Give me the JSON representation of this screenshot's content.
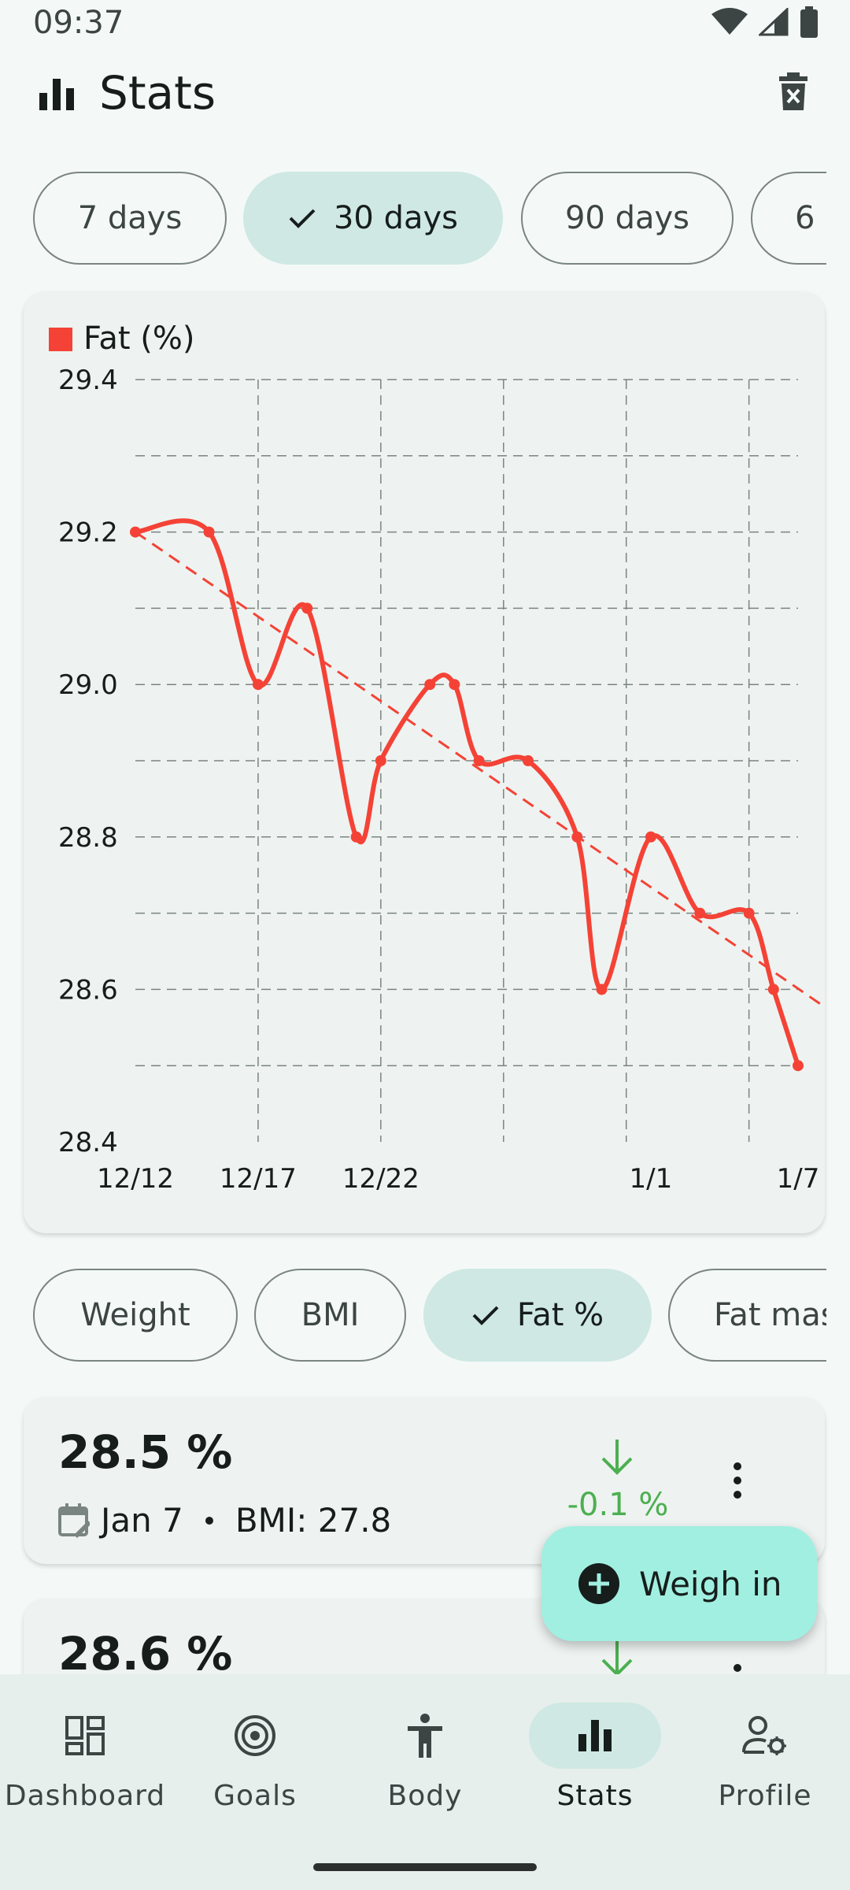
{
  "status": {
    "time": "09:37"
  },
  "header": {
    "title": "Stats"
  },
  "range_chips": [
    {
      "label": "7 days",
      "selected": false
    },
    {
      "label": "30 days",
      "selected": true
    },
    {
      "label": "90 days",
      "selected": false
    },
    {
      "label": "6",
      "selected": false
    }
  ],
  "chart_data": {
    "type": "line",
    "legend": "Fat (%)",
    "color": "#f44336",
    "y_ticks": [
      "29.4",
      "29.2",
      "29.0",
      "28.8",
      "28.6",
      "28.4"
    ],
    "x_tick_labels": [
      "12/12",
      "12/17",
      "12/22",
      "1/1",
      "1/7"
    ],
    "ylim": [
      28.4,
      29.4
    ],
    "grid": true,
    "series": [
      {
        "values": [
          {
            "x": "12/12",
            "y": 29.2
          },
          {
            "x": "12/15",
            "y": 29.2
          },
          {
            "x": "12/17",
            "y": 29.0
          },
          {
            "x": "12/19",
            "y": 29.1
          },
          {
            "x": "12/21",
            "y": 28.8
          },
          {
            "x": "12/22",
            "y": 28.9
          },
          {
            "x": "12/24",
            "y": 29.0
          },
          {
            "x": "12/25",
            "y": 29.0
          },
          {
            "x": "12/26",
            "y": 28.9
          },
          {
            "x": "12/28",
            "y": 28.9
          },
          {
            "x": "12/30",
            "y": 28.8
          },
          {
            "x": "12/31",
            "y": 28.6
          },
          {
            "x": "1/1",
            "y": 28.8
          },
          {
            "x": "1/3",
            "y": 28.7
          },
          {
            "x": "1/5",
            "y": 28.7
          },
          {
            "x": "1/6",
            "y": 28.6
          },
          {
            "x": "1/7",
            "y": 28.5
          }
        ]
      }
    ],
    "trendline": {
      "dashed": true,
      "from": {
        "x": "12/12",
        "y": 29.2
      },
      "to": {
        "x": "1/7",
        "y": 28.59
      }
    }
  },
  "metric_chips": [
    {
      "label": "Weight",
      "selected": false
    },
    {
      "label": "BMI",
      "selected": false
    },
    {
      "label": "Fat %",
      "selected": true
    },
    {
      "label": "Fat mas",
      "selected": false
    }
  ],
  "entries": [
    {
      "value": "28.5 %",
      "date": "Jan 7",
      "bmi": "BMI: 27.8",
      "delta": "-0.1 %"
    },
    {
      "value": "28.6 %"
    }
  ],
  "fab": {
    "label": "Weigh in"
  },
  "nav": [
    {
      "label": "Dashboard",
      "icon": "dashboard-icon"
    },
    {
      "label": "Goals",
      "icon": "target-icon"
    },
    {
      "label": "Body",
      "icon": "body-icon"
    },
    {
      "label": "Stats",
      "icon": "bar-chart-icon",
      "active": true
    },
    {
      "label": "Profile",
      "icon": "profile-settings-icon"
    }
  ]
}
